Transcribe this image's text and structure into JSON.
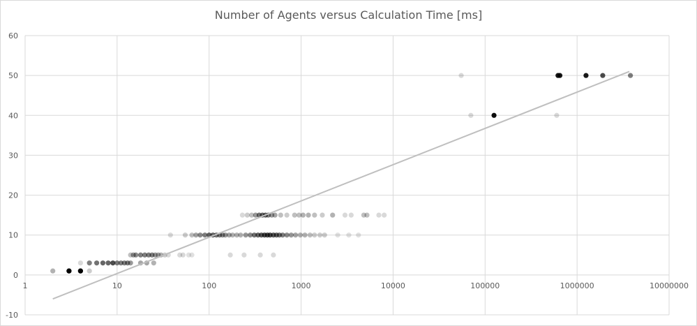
{
  "chart_data": {
    "type": "scatter",
    "title": "Number of Agents versus Calculation Time  [ms]",
    "xlabel": "",
    "ylabel": "",
    "x_scale": "log10",
    "xlim": [
      1,
      10000000
    ],
    "ylim": [
      -10,
      60
    ],
    "x_tick_labels": [
      "1",
      "10",
      "100",
      "1000",
      "10000",
      "100000",
      "1000000",
      "10000000"
    ],
    "y_tick_labels": [
      "-10",
      "0",
      "10",
      "20",
      "30",
      "40",
      "50",
      "60"
    ],
    "grid": true,
    "legend": "none",
    "series": [
      {
        "points": [
          {
            "x": 2,
            "y": 1,
            "a": 0.3
          },
          {
            "x": 3,
            "y": 1,
            "a": 0.9
          },
          {
            "x": 3,
            "y": 1,
            "a": 0.9
          },
          {
            "x": 4,
            "y": 1,
            "a": 0.9
          },
          {
            "x": 4,
            "y": 1,
            "a": 0.9
          },
          {
            "x": 4,
            "y": 3,
            "a": 0.15
          },
          {
            "x": 5,
            "y": 1,
            "a": 0.2
          },
          {
            "x": 5,
            "y": 3,
            "a": 0.5
          },
          {
            "x": 6,
            "y": 3,
            "a": 0.55
          },
          {
            "x": 7,
            "y": 3,
            "a": 0.6
          },
          {
            "x": 8,
            "y": 3,
            "a": 0.6
          },
          {
            "x": 9,
            "y": 3,
            "a": 0.7
          },
          {
            "x": 10,
            "y": 3,
            "a": 0.5
          },
          {
            "x": 11,
            "y": 3,
            "a": 0.5
          },
          {
            "x": 12,
            "y": 3,
            "a": 0.5
          },
          {
            "x": 13,
            "y": 3,
            "a": 0.5
          },
          {
            "x": 14,
            "y": 3,
            "a": 0.4
          },
          {
            "x": 14,
            "y": 5,
            "a": 0.25
          },
          {
            "x": 15,
            "y": 5,
            "a": 0.4
          },
          {
            "x": 16,
            "y": 5,
            "a": 0.45
          },
          {
            "x": 18,
            "y": 5,
            "a": 0.5
          },
          {
            "x": 18,
            "y": 3,
            "a": 0.35
          },
          {
            "x": 20,
            "y": 5,
            "a": 0.5
          },
          {
            "x": 21,
            "y": 3,
            "a": 0.35
          },
          {
            "x": 22,
            "y": 5,
            "a": 0.5
          },
          {
            "x": 24,
            "y": 5,
            "a": 0.5
          },
          {
            "x": 25,
            "y": 3,
            "a": 0.3
          },
          {
            "x": 26,
            "y": 5,
            "a": 0.4
          },
          {
            "x": 28,
            "y": 5,
            "a": 0.35
          },
          {
            "x": 30,
            "y": 5,
            "a": 0.3
          },
          {
            "x": 33,
            "y": 5,
            "a": 0.2
          },
          {
            "x": 36,
            "y": 5,
            "a": 0.15
          },
          {
            "x": 38,
            "y": 10,
            "a": 0.15
          },
          {
            "x": 48,
            "y": 5,
            "a": 0.15
          },
          {
            "x": 52,
            "y": 5,
            "a": 0.15
          },
          {
            "x": 60,
            "y": 5,
            "a": 0.12
          },
          {
            "x": 65,
            "y": 5,
            "a": 0.12
          },
          {
            "x": 55,
            "y": 10,
            "a": 0.2
          },
          {
            "x": 65,
            "y": 10,
            "a": 0.25
          },
          {
            "x": 72,
            "y": 10,
            "a": 0.35
          },
          {
            "x": 80,
            "y": 10,
            "a": 0.45
          },
          {
            "x": 90,
            "y": 10,
            "a": 0.5
          },
          {
            "x": 100,
            "y": 10,
            "a": 0.6
          },
          {
            "x": 110,
            "y": 10,
            "a": 0.6
          },
          {
            "x": 120,
            "y": 10,
            "a": 0.55
          },
          {
            "x": 130,
            "y": 10,
            "a": 0.5
          },
          {
            "x": 140,
            "y": 10,
            "a": 0.45
          },
          {
            "x": 150,
            "y": 10,
            "a": 0.4
          },
          {
            "x": 165,
            "y": 10,
            "a": 0.35
          },
          {
            "x": 180,
            "y": 10,
            "a": 0.3
          },
          {
            "x": 200,
            "y": 10,
            "a": 0.3
          },
          {
            "x": 220,
            "y": 10,
            "a": 0.3
          },
          {
            "x": 250,
            "y": 10,
            "a": 0.4
          },
          {
            "x": 280,
            "y": 10,
            "a": 0.45
          },
          {
            "x": 310,
            "y": 10,
            "a": 0.55
          },
          {
            "x": 340,
            "y": 10,
            "a": 0.6
          },
          {
            "x": 370,
            "y": 10,
            "a": 0.65
          },
          {
            "x": 400,
            "y": 10,
            "a": 0.7
          },
          {
            "x": 430,
            "y": 10,
            "a": 0.7
          },
          {
            "x": 460,
            "y": 10,
            "a": 0.7
          },
          {
            "x": 500,
            "y": 10,
            "a": 0.65
          },
          {
            "x": 540,
            "y": 10,
            "a": 0.6
          },
          {
            "x": 580,
            "y": 10,
            "a": 0.55
          },
          {
            "x": 630,
            "y": 10,
            "a": 0.5
          },
          {
            "x": 700,
            "y": 10,
            "a": 0.45
          },
          {
            "x": 780,
            "y": 10,
            "a": 0.4
          },
          {
            "x": 870,
            "y": 10,
            "a": 0.35
          },
          {
            "x": 980,
            "y": 10,
            "a": 0.3
          },
          {
            "x": 1100,
            "y": 10,
            "a": 0.3
          },
          {
            "x": 1250,
            "y": 10,
            "a": 0.25
          },
          {
            "x": 1400,
            "y": 10,
            "a": 0.2
          },
          {
            "x": 1600,
            "y": 10,
            "a": 0.2
          },
          {
            "x": 1800,
            "y": 10,
            "a": 0.2
          },
          {
            "x": 2500,
            "y": 10,
            "a": 0.12
          },
          {
            "x": 3300,
            "y": 10,
            "a": 0.12
          },
          {
            "x": 4200,
            "y": 10,
            "a": 0.12
          },
          {
            "x": 170,
            "y": 5,
            "a": 0.15
          },
          {
            "x": 240,
            "y": 5,
            "a": 0.15
          },
          {
            "x": 360,
            "y": 5,
            "a": 0.15
          },
          {
            "x": 500,
            "y": 5,
            "a": 0.15
          },
          {
            "x": 230,
            "y": 15,
            "a": 0.15
          },
          {
            "x": 260,
            "y": 15,
            "a": 0.2
          },
          {
            "x": 290,
            "y": 15,
            "a": 0.25
          },
          {
            "x": 320,
            "y": 15,
            "a": 0.4
          },
          {
            "x": 350,
            "y": 15,
            "a": 0.55
          },
          {
            "x": 380,
            "y": 15,
            "a": 0.6
          },
          {
            "x": 410,
            "y": 15,
            "a": 0.6
          },
          {
            "x": 440,
            "y": 15,
            "a": 0.5
          },
          {
            "x": 480,
            "y": 15,
            "a": 0.4
          },
          {
            "x": 520,
            "y": 15,
            "a": 0.35
          },
          {
            "x": 600,
            "y": 15,
            "a": 0.25
          },
          {
            "x": 700,
            "y": 15,
            "a": 0.2
          },
          {
            "x": 850,
            "y": 15,
            "a": 0.25
          },
          {
            "x": 950,
            "y": 15,
            "a": 0.25
          },
          {
            "x": 1050,
            "y": 15,
            "a": 0.3
          },
          {
            "x": 1200,
            "y": 15,
            "a": 0.3
          },
          {
            "x": 1400,
            "y": 15,
            "a": 0.25
          },
          {
            "x": 1700,
            "y": 15,
            "a": 0.2
          },
          {
            "x": 2200,
            "y": 15,
            "a": 0.3
          },
          {
            "x": 3000,
            "y": 15,
            "a": 0.15
          },
          {
            "x": 3500,
            "y": 15,
            "a": 0.15
          },
          {
            "x": 4800,
            "y": 15,
            "a": 0.25
          },
          {
            "x": 5200,
            "y": 15,
            "a": 0.25
          },
          {
            "x": 7000,
            "y": 15,
            "a": 0.15
          },
          {
            "x": 8000,
            "y": 15,
            "a": 0.15
          },
          {
            "x": 55000,
            "y": 50,
            "a": 0.15
          },
          {
            "x": 70000,
            "y": 40,
            "a": 0.15
          },
          {
            "x": 125000,
            "y": 40,
            "a": 0.95
          },
          {
            "x": 600000,
            "y": 40,
            "a": 0.15
          },
          {
            "x": 620000,
            "y": 50,
            "a": 0.9
          },
          {
            "x": 650000,
            "y": 50,
            "a": 0.9
          },
          {
            "x": 1250000,
            "y": 50,
            "a": 0.9
          },
          {
            "x": 1900000,
            "y": 50,
            "a": 0.7
          },
          {
            "x": 3800000,
            "y": 50,
            "a": 0.5
          }
        ]
      }
    ],
    "trendline": {
      "type": "linear-on-log-x",
      "x": [
        2,
        3700000
      ],
      "y": [
        -6,
        51
      ]
    },
    "colors": {
      "marker": "#000000",
      "trendline": "#bfbfbf",
      "grid": "#d9d9d9",
      "text": "#595959"
    }
  }
}
